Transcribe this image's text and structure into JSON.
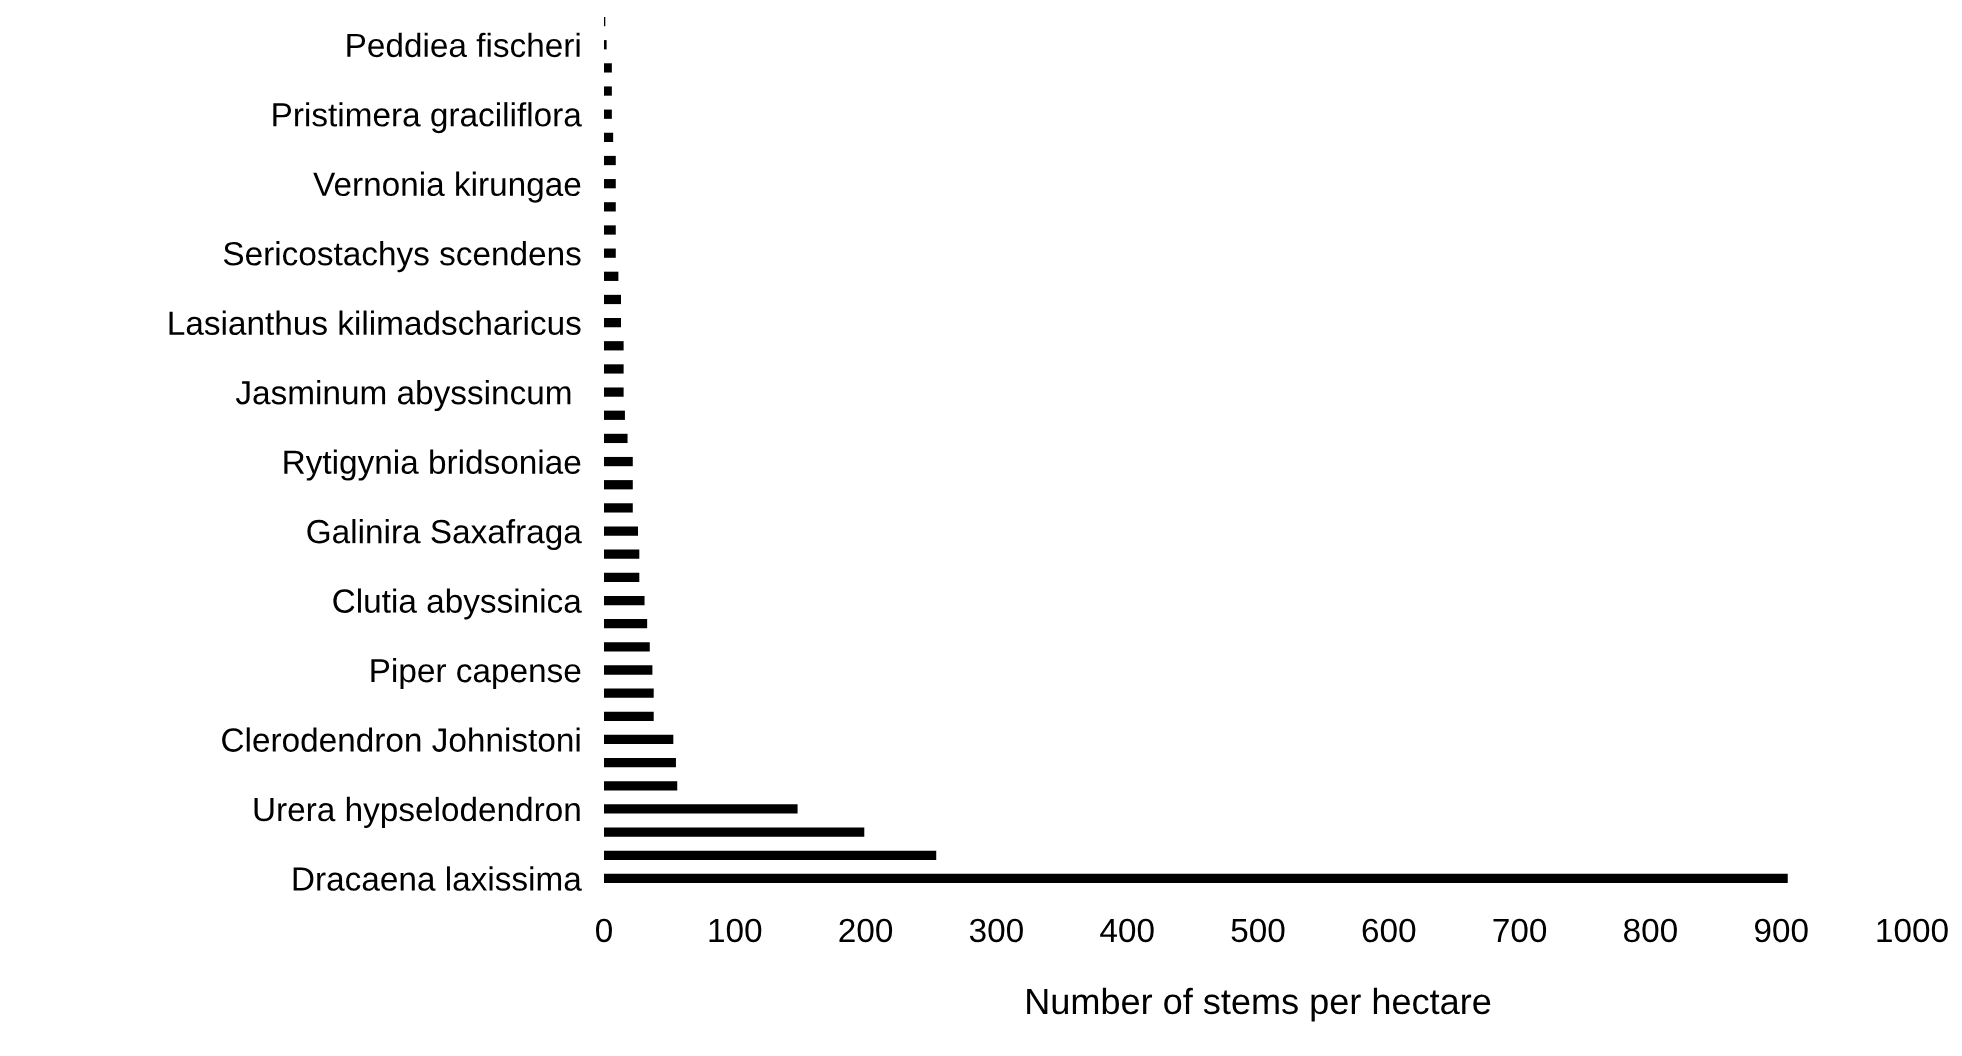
{
  "chart_data": {
    "type": "bar",
    "orientation": "horizontal",
    "xlabel": "Number of stems per hectare",
    "categories": [
      null,
      "Peddiea fischeri",
      null,
      null,
      "Pristimera graciliflora",
      null,
      null,
      "Vernonia kirungae",
      null,
      null,
      "Sericostachys scendens",
      null,
      null,
      "Lasianthus kilimadscharicus",
      null,
      null,
      "Jasminum abyssincum ",
      null,
      null,
      "Rytigynia bridsoniae",
      null,
      null,
      "Galinira Saxafraga",
      null,
      null,
      "Clutia abyssinica",
      null,
      null,
      "Piper capense",
      null,
      null,
      "Clerodendron Johnistoni",
      null,
      null,
      "Urera hypselodendron",
      null,
      null,
      "Dracaena laxissima"
    ],
    "values": [
      1,
      2,
      6,
      6,
      6,
      7,
      9,
      9,
      9,
      9,
      9,
      11,
      13,
      13,
      15,
      15,
      15,
      16,
      18,
      22,
      22,
      22,
      26,
      27,
      27,
      31,
      33,
      35,
      37,
      38,
      38,
      53,
      55,
      56,
      148,
      199,
      254,
      905
    ],
    "color": "#000000",
    "xlim": [
      0,
      1000
    ],
    "xticks": [
      0,
      100,
      200,
      300,
      400,
      500,
      600,
      700,
      800,
      900,
      1000
    ],
    "grid": false,
    "legend": false
  }
}
